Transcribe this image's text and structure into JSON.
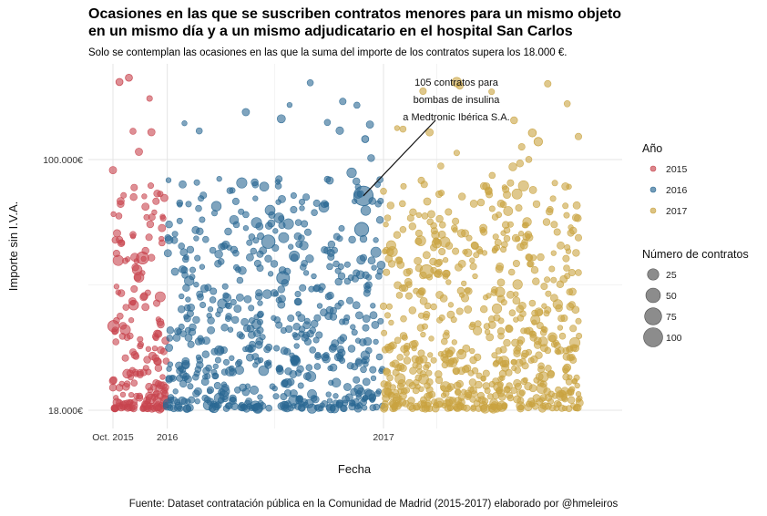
{
  "chart_data": {
    "type": "scatter",
    "title_lines": [
      "Ocasiones en las que se suscriben contratos menores para un mismo objeto",
      "en un mismo día y a un mismo adjudicatario en el hospital San Carlos"
    ],
    "subtitle": "Solo se contemplan las ocasiones en las que la suma del importe de los contratos supera los 18.000 €.",
    "xlabel": "Fecha",
    "ylabel": "Importe sin I.V.A.",
    "caption": "Fuente: Dataset contratación pública en la Comunidad de Madrid (2015-2017) elaborado por @hmeleiros",
    "x_ticks": [
      {
        "label": "Oct. 2015",
        "date": "2015-10-01"
      },
      {
        "label": "2016",
        "date": "2016-01-01"
      },
      {
        "label": "2017",
        "date": "2017-01-01"
      }
    ],
    "x_range": [
      "2015-09-15",
      "2017-11-30"
    ],
    "y_scale": "log",
    "y_ticks": [
      {
        "label": "100.000€",
        "value": 100000
      },
      {
        "label": "18.000€",
        "value": 18000
      }
    ],
    "y_range": [
      16500,
      185000
    ],
    "grid": true,
    "legend_position": "right",
    "color_legend": {
      "title": "Año",
      "entries": [
        {
          "label": "2015",
          "color": "#C8454F"
        },
        {
          "label": "2016",
          "color": "#2A6893"
        },
        {
          "label": "2017",
          "color": "#C9A341"
        }
      ]
    },
    "size_legend": {
      "title": "Número de contratos",
      "entries": [
        {
          "label": "25",
          "value": 25
        },
        {
          "label": "50",
          "value": 50
        },
        {
          "label": "75",
          "value": 75
        },
        {
          "label": "100",
          "value": 100
        }
      ]
    },
    "annotation": {
      "lines": [
        "105 contratos para",
        "bombas de insulina",
        "a Medtronic Ibérica S.A."
      ],
      "date": "2016-11-28",
      "value": 78000,
      "contracts": 105
    },
    "series": [
      {
        "name": "2015",
        "date_range": [
          "2015-10-01",
          "2015-12-31"
        ],
        "points": 190,
        "highlights": [
          {
            "date": "2015-10-12",
            "value": 170000,
            "contracts": 5
          },
          {
            "date": "2015-10-28",
            "value": 175000,
            "contracts": 5
          },
          {
            "date": "2015-11-20",
            "value": 51000,
            "contracts": 30
          },
          {
            "date": "2015-10-02",
            "value": 32000,
            "contracts": 25
          }
        ]
      },
      {
        "name": "2016",
        "date_range": [
          "2016-01-01",
          "2016-12-31"
        ],
        "points": 620,
        "highlights": [
          {
            "date": "2016-11-28",
            "value": 78000,
            "contracts": 105
          },
          {
            "date": "2016-11-25",
            "value": 62000,
            "contracts": 45
          },
          {
            "date": "2016-06-20",
            "value": 57000,
            "contracts": 40
          },
          {
            "date": "2016-07-15",
            "value": 44500,
            "contracts": 35
          },
          {
            "date": "2016-12-01",
            "value": 115000,
            "contracts": 5
          }
        ]
      },
      {
        "name": "2017",
        "date_range": [
          "2017-01-01",
          "2017-11-30"
        ],
        "points": 680,
        "highlights": [
          {
            "date": "2017-03-15",
            "value": 46500,
            "contracts": 40
          },
          {
            "date": "2017-09-10",
            "value": 120000,
            "contracts": 8
          },
          {
            "date": "2017-09-20",
            "value": 113000,
            "contracts": 10
          }
        ]
      }
    ]
  }
}
